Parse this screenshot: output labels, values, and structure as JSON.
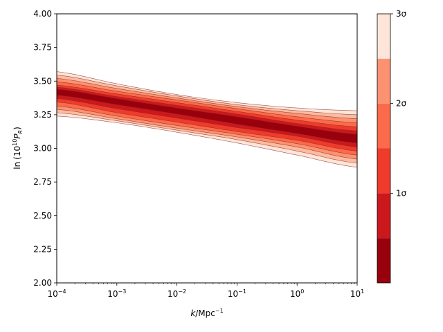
{
  "chart_data": {
    "type": "area",
    "title": "",
    "xlabel": {
      "base": "k",
      "unit": "/Mpc",
      "exp": "−1"
    },
    "ylabel": {
      "pre": "ln",
      "paren_open": "(",
      "coef": "10",
      "exp": "10",
      "sym": "P",
      "sub": "R",
      "paren_close": ")"
    },
    "xscale": "log",
    "xlim": [
      0.0001,
      10
    ],
    "ylim": [
      2.0,
      4.0
    ],
    "grid": false,
    "x_ticks": [
      {
        "value": 0.0001,
        "base": "10",
        "exp": "−4"
      },
      {
        "value": 0.001,
        "base": "10",
        "exp": "−3"
      },
      {
        "value": 0.01,
        "base": "10",
        "exp": "−2"
      },
      {
        "value": 0.1,
        "base": "10",
        "exp": "−1"
      },
      {
        "value": 1,
        "base": "10",
        "exp": "0"
      },
      {
        "value": 10,
        "base": "10",
        "exp": "1"
      }
    ],
    "y_ticks": [
      "2.00",
      "2.25",
      "2.50",
      "2.75",
      "3.00",
      "3.25",
      "3.50",
      "3.75",
      "4.00"
    ],
    "x": [
      0.0001,
      0.001,
      0.01,
      0.1,
      1,
      10
    ],
    "median": [
      3.42,
      3.35,
      3.28,
      3.21,
      3.14,
      3.07
    ],
    "bands": [
      {
        "level": 3.0,
        "color": "#fee5d9",
        "upper": [
          3.57,
          3.48,
          3.4,
          3.34,
          3.3,
          3.28
        ],
        "lower": [
          3.24,
          3.19,
          3.12,
          3.04,
          2.95,
          2.86
        ]
      },
      {
        "level": 2.5,
        "color": "#fcbba1",
        "upper": [
          3.545,
          3.465,
          3.39,
          3.325,
          3.28,
          3.25
        ],
        "lower": [
          3.265,
          3.205,
          3.135,
          3.065,
          2.98,
          2.89
        ]
      },
      {
        "level": 2.0,
        "color": "#fc9272",
        "upper": [
          3.52,
          3.445,
          3.375,
          3.31,
          3.26,
          3.22
        ],
        "lower": [
          3.29,
          3.22,
          3.15,
          3.085,
          3.01,
          2.92
        ]
      },
      {
        "level": 1.5,
        "color": "#fb6a4a",
        "upper": [
          3.495,
          3.425,
          3.36,
          3.295,
          3.235,
          3.19
        ],
        "lower": [
          3.315,
          3.24,
          3.17,
          3.105,
          3.035,
          2.95
        ]
      },
      {
        "level": 1.0,
        "color": "#ef3b2c",
        "upper": [
          3.47,
          3.405,
          3.34,
          3.275,
          3.21,
          3.16
        ],
        "lower": [
          3.345,
          3.265,
          3.195,
          3.125,
          3.06,
          2.98
        ]
      },
      {
        "level": 0.5,
        "color": "#cb181d",
        "upper": [
          3.455,
          3.385,
          3.32,
          3.255,
          3.185,
          3.13
        ],
        "lower": [
          3.37,
          3.295,
          3.225,
          3.155,
          3.09,
          3.01
        ]
      },
      {
        "level": 0.33,
        "color": "#99000d",
        "upper": [
          3.44,
          3.37,
          3.3,
          3.235,
          3.165,
          3.105
        ],
        "lower": [
          3.395,
          3.325,
          3.255,
          3.18,
          3.11,
          3.04
        ]
      }
    ],
    "colorbar": {
      "levels": [
        0.33,
        0.5,
        1.0,
        1.5,
        2.0,
        2.5,
        3.0
      ],
      "colors": [
        "#99000d",
        "#cb181d",
        "#ef3b2c",
        "#fb6a4a",
        "#fc9272",
        "#fcbba1",
        "#fee5d9"
      ],
      "range": [
        0,
        3
      ],
      "ticks": [
        {
          "value": 1,
          "label": "1σ"
        },
        {
          "value": 2,
          "label": "2σ"
        },
        {
          "value": 3,
          "label": "3σ"
        }
      ]
    },
    "contour_color": "#8b2a1f"
  }
}
